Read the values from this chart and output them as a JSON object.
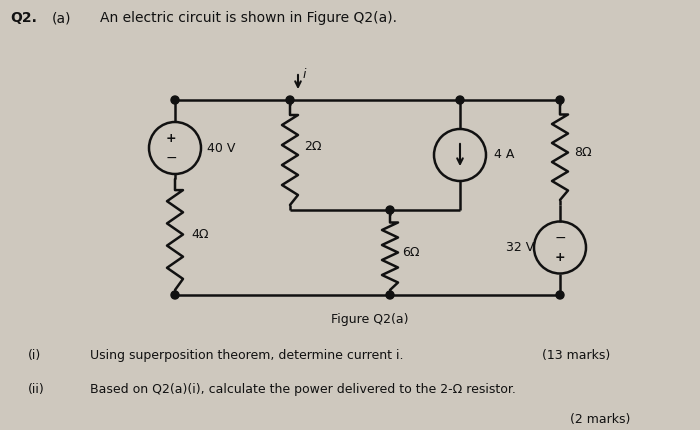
{
  "title_text": "An electric circuit is shown in Figure Q2(a).",
  "q_label": "Q2.",
  "a_label": "(a)",
  "figure_caption": "Figure Q2(a)",
  "q1_label": "(i)",
  "q1_text": "Using superposition theorem, determine current i.",
  "q1_marks": "(13 marks)",
  "q2_label": "(ii)",
  "q2_text": "Based on Q2(a)(i), calculate the power delivered to the 2-Ω resistor.",
  "q2_marks": "(2 marks)",
  "bg_color": "#cec8be",
  "circuit_color": "#111111",
  "font_color": "#111111",
  "lw": 1.8
}
